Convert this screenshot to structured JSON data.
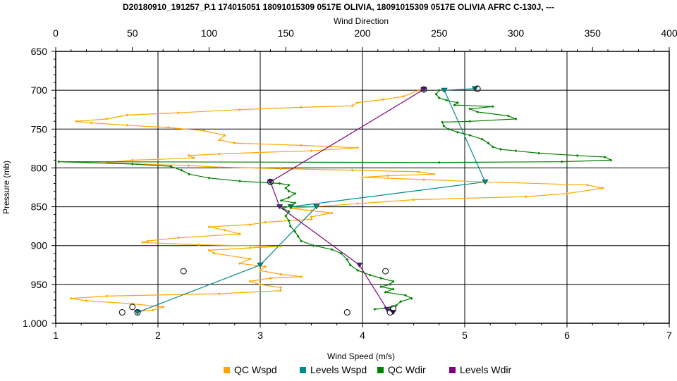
{
  "chart_data": {
    "type": "line",
    "title": "D20180910_191257_P.1 174015051 18091015309 0517E OLIVIA, 18091015309 0517E OLIVIA AFRC C-130J, ---",
    "x2label": "Wind Direction",
    "xlabel": "Wind Speed (m/s)",
    "ylabel": "Pressure (mb)",
    "xlim": [
      1,
      7
    ],
    "x2lim": [
      0,
      400
    ],
    "ylim": [
      1000,
      650
    ],
    "y_inverted": true,
    "grid": true,
    "legend_position": "bottom",
    "x_ticks": [
      "1",
      "2",
      "3",
      "4",
      "5",
      "6",
      "7"
    ],
    "x2_ticks": [
      "0",
      "50",
      "100",
      "150",
      "200",
      "250",
      "300",
      "350",
      "400"
    ],
    "y_ticks": [
      "650",
      "700",
      "750",
      "800",
      "850",
      "900",
      "950",
      "1.000"
    ],
    "series": [
      {
        "name": "QC Wspd",
        "axis": "speed",
        "color": "#FFA500",
        "marker": "diamond",
        "points": [
          [
            1.8,
            985
          ],
          [
            1.95,
            983
          ],
          [
            2.05,
            979
          ],
          [
            1.75,
            975
          ],
          [
            1.3,
            971
          ],
          [
            1.15,
            968
          ],
          [
            1.5,
            965
          ],
          [
            2.6,
            962
          ],
          [
            3.2,
            958
          ],
          [
            3.2,
            954
          ],
          [
            3.0,
            950
          ],
          [
            2.9,
            946
          ],
          [
            3.1,
            942
          ],
          [
            3.4,
            940
          ],
          [
            3.2,
            937
          ],
          [
            3.0,
            932
          ],
          [
            3.05,
            927
          ],
          [
            2.8,
            923
          ],
          [
            2.9,
            917
          ],
          [
            2.55,
            910
          ],
          [
            2.5,
            906
          ],
          [
            2.9,
            903
          ],
          [
            3.2,
            901
          ],
          [
            2.4,
            899
          ],
          [
            1.85,
            896
          ],
          [
            1.9,
            894
          ],
          [
            2.2,
            890
          ],
          [
            2.8,
            885
          ],
          [
            2.65,
            880
          ],
          [
            2.5,
            876
          ],
          [
            2.9,
            873
          ],
          [
            3.05,
            870
          ],
          [
            3.5,
            866
          ],
          [
            3.5,
            863
          ],
          [
            3.7,
            858
          ],
          [
            3.5,
            855
          ],
          [
            3.3,
            852
          ],
          [
            3.95,
            846
          ],
          [
            4.5,
            841
          ],
          [
            5.6,
            837
          ],
          [
            6.0,
            833
          ],
          [
            6.35,
            826
          ],
          [
            6.2,
            822
          ],
          [
            5.2,
            818
          ],
          [
            4.6,
            815
          ],
          [
            4.0,
            812
          ],
          [
            4.25,
            810
          ],
          [
            4.7,
            808
          ],
          [
            4.55,
            805
          ],
          [
            3.9,
            803
          ],
          [
            3.2,
            801
          ],
          [
            2.6,
            799
          ],
          [
            2.3,
            797
          ],
          [
            1.8,
            795
          ],
          [
            1.5,
            793
          ],
          [
            1.75,
            790
          ],
          [
            2.0,
            789
          ],
          [
            2.35,
            787
          ],
          [
            2.3,
            784
          ],
          [
            2.6,
            782
          ],
          [
            3.0,
            780
          ],
          [
            3.5,
            778
          ],
          [
            3.95,
            774
          ],
          [
            3.4,
            771
          ],
          [
            2.75,
            768
          ],
          [
            2.6,
            764
          ],
          [
            2.65,
            758
          ],
          [
            2.45,
            752
          ],
          [
            2.1,
            748
          ],
          [
            1.7,
            745
          ],
          [
            1.35,
            742
          ],
          [
            1.2,
            740
          ],
          [
            1.5,
            737
          ],
          [
            1.7,
            732
          ],
          [
            2.2,
            729
          ],
          [
            2.8,
            725
          ],
          [
            3.4,
            722
          ],
          [
            3.9,
            720
          ],
          [
            3.95,
            716
          ],
          [
            4.2,
            712
          ],
          [
            4.4,
            708
          ],
          [
            4.55,
            700
          ]
        ]
      },
      {
        "name": "Levels Wspd",
        "axis": "speed",
        "color": "#008B8B",
        "marker": "triangle",
        "points": [
          [
            1.8,
            986
          ],
          [
            3.0,
            925
          ],
          [
            3.55,
            850
          ],
          [
            3.3,
            850
          ],
          [
            5.2,
            818
          ],
          [
            4.8,
            700
          ],
          [
            5.1,
            698
          ]
        ]
      },
      {
        "name": "QC Wdir",
        "axis": "direction",
        "color": "#008000",
        "marker": "diamond",
        "points": [
          [
            208,
            982
          ],
          [
            218,
            980
          ],
          [
            222,
            977
          ],
          [
            225,
            972
          ],
          [
            232,
            968
          ],
          [
            228,
            964
          ],
          [
            215,
            960
          ],
          [
            220,
            956
          ],
          [
            212,
            953
          ],
          [
            218,
            950
          ],
          [
            220,
            946
          ],
          [
            212,
            942
          ],
          [
            205,
            938
          ],
          [
            197,
            932
          ],
          [
            192,
            925
          ],
          [
            190,
            918
          ],
          [
            186,
            910
          ],
          [
            180,
            905
          ],
          [
            168,
            900
          ],
          [
            160,
            894
          ],
          [
            158,
            888
          ],
          [
            156,
            882
          ],
          [
            153,
            875
          ],
          [
            152,
            868
          ],
          [
            150,
            862
          ],
          [
            152,
            856
          ],
          [
            148,
            852
          ],
          [
            153,
            849
          ],
          [
            156,
            845
          ],
          [
            147,
            842
          ],
          [
            152,
            838
          ],
          [
            156,
            833
          ],
          [
            152,
            830
          ],
          [
            150,
            826
          ],
          [
            152,
            822
          ],
          [
            146,
            820
          ],
          [
            120,
            817
          ],
          [
            100,
            813
          ],
          [
            87,
            808
          ],
          [
            82,
            803
          ],
          [
            75,
            798
          ],
          [
            50,
            795
          ],
          [
            2,
            792
          ],
          [
            250,
            793
          ],
          [
            330,
            792
          ],
          [
            362,
            790
          ],
          [
            358,
            786
          ],
          [
            340,
            784
          ],
          [
            315,
            781
          ],
          [
            300,
            778
          ],
          [
            290,
            776
          ],
          [
            285,
            773
          ],
          [
            282,
            768
          ],
          [
            278,
            763
          ],
          [
            270,
            758
          ],
          [
            262,
            754
          ],
          [
            256,
            750
          ],
          [
            253,
            746
          ],
          [
            252,
            741
          ],
          [
            270,
            740
          ],
          [
            300,
            737
          ],
          [
            295,
            733
          ],
          [
            275,
            728
          ],
          [
            270,
            724
          ],
          [
            285,
            721
          ],
          [
            260,
            719
          ],
          [
            262,
            716
          ],
          [
            255,
            713
          ],
          [
            250,
            710
          ],
          [
            248,
            705
          ],
          [
            250,
            700
          ]
        ]
      },
      {
        "name": "Levels Wdir",
        "axis": "direction",
        "color": "#800080",
        "marker": "triangle",
        "points": [
          [
            220,
            986
          ],
          [
            216,
            982
          ],
          [
            198,
            925
          ],
          [
            146,
            850
          ],
          [
            140,
            818
          ],
          [
            240,
            699
          ]
        ]
      }
    ],
    "circle_markers": {
      "speed": [
        [
          1.65,
          986
        ],
        [
          1.75,
          979
        ],
        [
          1.8,
          986
        ],
        [
          2.25,
          933
        ],
        [
          3.85,
          986
        ]
      ],
      "direction": [
        [
          218,
          986
        ],
        [
          220,
          981
        ],
        [
          215,
          933
        ],
        [
          140,
          818
        ],
        [
          240,
          699
        ],
        [
          275,
          698
        ]
      ]
    }
  }
}
